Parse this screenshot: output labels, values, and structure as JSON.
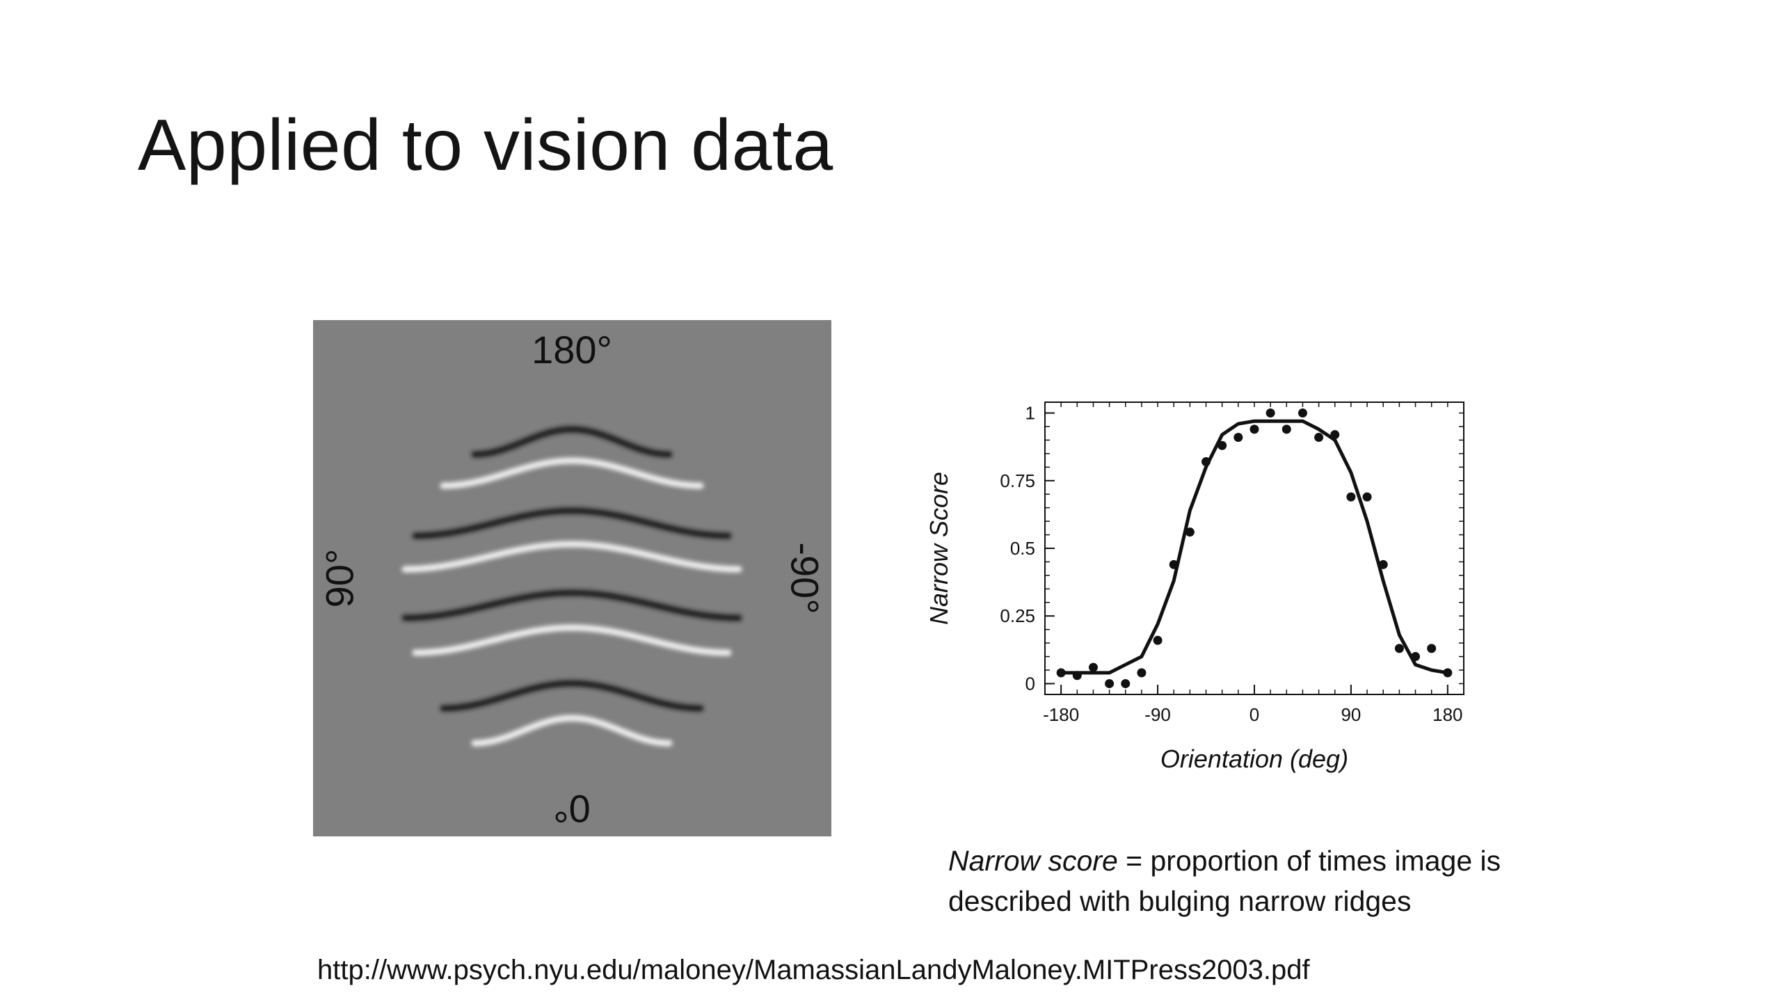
{
  "slide": {
    "title": "Applied to vision data",
    "source_url": "http://www.psych.nyu.edu/maloney/MamassianLandyMaloney.MITPress2003.pdf"
  },
  "stimulus": {
    "label_top": "180°",
    "label_bottom": "0°",
    "label_left": "90°",
    "label_right": "-90°",
    "background_color": "#808080"
  },
  "caption": {
    "term": "Narrow score",
    "definition": " = proportion of times image is described with bulging narrow ridges"
  },
  "chart_data": {
    "type": "scatter",
    "xlabel": "Orientation (deg)",
    "ylabel": "Narrow Score",
    "xlim": [
      -195,
      195
    ],
    "ylim": [
      -0.04,
      1.04
    ],
    "xticks": [
      -180,
      -90,
      0,
      90,
      180
    ],
    "xtick_labels": [
      "-180",
      "-90",
      "0",
      "90",
      "180"
    ],
    "yticks": [
      0,
      0.25,
      0.5,
      0.75,
      1
    ],
    "ytick_labels": [
      "0",
      "0.25",
      "0.5",
      "0.75",
      "1"
    ],
    "grid": false,
    "series": [
      {
        "style": "points",
        "x": [
          -180,
          -165,
          -150,
          -135,
          -120,
          -105,
          -90,
          -75,
          -60,
          -45,
          -30,
          -15,
          0,
          15,
          30,
          45,
          60,
          75,
          90,
          105,
          120,
          135,
          150,
          165,
          180
        ],
        "y": [
          0.04,
          0.03,
          0.06,
          0.0,
          0.0,
          0.04,
          0.16,
          0.44,
          0.56,
          0.82,
          0.88,
          0.91,
          0.94,
          1.0,
          0.94,
          1.0,
          0.91,
          0.92,
          0.69,
          0.69,
          0.44,
          0.13,
          0.1,
          0.13,
          0.04
        ]
      },
      {
        "style": "line",
        "x": [
          -180,
          -165,
          -150,
          -135,
          -120,
          -105,
          -90,
          -75,
          -60,
          -45,
          -30,
          -15,
          0,
          15,
          30,
          45,
          60,
          75,
          90,
          105,
          120,
          135,
          150,
          165,
          180
        ],
        "y": [
          0.04,
          0.04,
          0.04,
          0.04,
          0.07,
          0.1,
          0.22,
          0.38,
          0.64,
          0.8,
          0.92,
          0.96,
          0.97,
          0.97,
          0.97,
          0.97,
          0.94,
          0.9,
          0.78,
          0.6,
          0.38,
          0.18,
          0.07,
          0.05,
          0.04
        ]
      }
    ]
  }
}
